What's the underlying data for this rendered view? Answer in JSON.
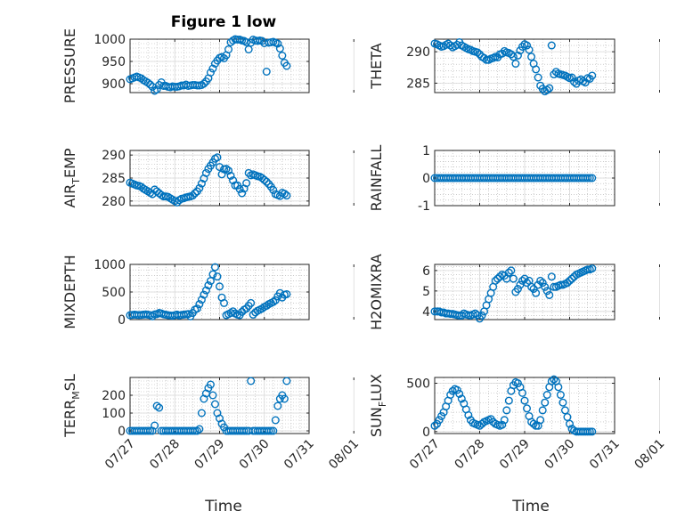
{
  "figure": {
    "title": "Figure 1 low",
    "xlabel": "Time"
  },
  "colors": {
    "marker": "#0072BD",
    "axis": "#262626",
    "grid": "#b0b0b0"
  },
  "time_ticks": [
    "07/27",
    "07/28",
    "07/29",
    "07/30",
    "07/31",
    "08/01"
  ],
  "chart_data": [
    {
      "type": "scatter",
      "id": "pressure",
      "ylabel": "PRESSURE",
      "xlim": [
        0,
        4
      ],
      "ylim": [
        880,
        1000
      ],
      "yticks": [
        900,
        950,
        1000
      ],
      "grid": true,
      "x": [
        0.0,
        0.05,
        0.1,
        0.15,
        0.2,
        0.25,
        0.3,
        0.35,
        0.4,
        0.45,
        0.5,
        0.55,
        0.6,
        0.65,
        0.7,
        0.75,
        0.8,
        0.85,
        0.9,
        0.95,
        1.0,
        1.05,
        1.1,
        1.15,
        1.2,
        1.25,
        1.3,
        1.35,
        1.4,
        1.45,
        1.5,
        1.55,
        1.6,
        1.65,
        1.7,
        1.75,
        1.8,
        1.85,
        1.9,
        1.95,
        2.0,
        2.05,
        2.1,
        2.15,
        2.2,
        2.25,
        2.3,
        2.35,
        2.4,
        2.45,
        2.5,
        2.55,
        2.6,
        2.65,
        2.7,
        2.75,
        2.8,
        2.85,
        2.9,
        2.95,
        3.0,
        3.05,
        3.1,
        3.15,
        3.2,
        3.25,
        3.3,
        3.35,
        3.4,
        3.45,
        3.5
      ],
      "y": [
        910,
        912,
        914,
        916,
        914,
        912,
        908,
        905,
        902,
        898,
        893,
        884,
        887,
        897,
        903,
        895,
        895,
        893,
        892,
        894,
        893,
        893,
        894,
        896,
        896,
        898,
        895,
        896,
        897,
        897,
        896,
        896,
        897,
        900,
        905,
        912,
        925,
        934,
        945,
        952,
        958,
        960,
        957,
        964,
        977,
        993,
        997,
        1000,
        999,
        999,
        997,
        996,
        993,
        977,
        992,
        999,
        997,
        996,
        997,
        996,
        991,
        927,
        992,
        993,
        994,
        992,
        990,
        979,
        963,
        947,
        940
      ]
    },
    {
      "type": "scatter",
      "id": "theta",
      "ylabel": "THETA",
      "xlim": [
        0,
        4
      ],
      "ylim": [
        283.5,
        292
      ],
      "yticks": [
        285,
        290
      ],
      "grid": true,
      "x": [
        0.0,
        0.05,
        0.1,
        0.15,
        0.2,
        0.25,
        0.3,
        0.35,
        0.4,
        0.45,
        0.5,
        0.55,
        0.6,
        0.65,
        0.7,
        0.75,
        0.8,
        0.85,
        0.9,
        0.95,
        1.0,
        1.05,
        1.1,
        1.15,
        1.2,
        1.25,
        1.3,
        1.35,
        1.4,
        1.45,
        1.5,
        1.55,
        1.6,
        1.65,
        1.7,
        1.75,
        1.8,
        1.85,
        1.9,
        1.95,
        2.0,
        2.05,
        2.1,
        2.15,
        2.2,
        2.25,
        2.3,
        2.35,
        2.4,
        2.45,
        2.5,
        2.55,
        2.6,
        2.65,
        2.7,
        2.75,
        2.8,
        2.85,
        2.9,
        2.95,
        3.0,
        3.05,
        3.1,
        3.15,
        3.2,
        3.25,
        3.3,
        3.35,
        3.4,
        3.45,
        3.5
      ],
      "y": [
        291.3,
        291.2,
        291.0,
        290.8,
        290.9,
        291.1,
        291.3,
        291.0,
        290.7,
        290.9,
        291.1,
        291.5,
        291.0,
        290.8,
        290.6,
        290.4,
        290.3,
        290.1,
        290.0,
        289.9,
        289.6,
        289.2,
        289.0,
        288.7,
        288.7,
        288.9,
        289.0,
        289.2,
        289.1,
        289.6,
        289.7,
        290.1,
        289.9,
        289.8,
        289.6,
        289.2,
        288.1,
        289.4,
        290.2,
        290.8,
        291.2,
        291.0,
        290.3,
        289.2,
        288.1,
        287.2,
        285.9,
        284.6,
        284.1,
        283.7,
        283.9,
        284.2,
        291.0,
        286.4,
        286.8,
        286.5,
        286.4,
        286.3,
        286.2,
        286.0,
        285.8,
        285.9,
        285.2,
        284.9,
        285.4,
        285.6,
        285.3,
        285.1,
        285.8,
        285.7,
        286.2
      ]
    },
    {
      "type": "scatter",
      "id": "air_temp",
      "ylabel": "AIR_TEMP",
      "xlim": [
        0,
        4
      ],
      "ylim": [
        279,
        291
      ],
      "yticks": [
        280,
        285,
        290
      ],
      "grid": true,
      "x": [
        0.0,
        0.05,
        0.1,
        0.15,
        0.2,
        0.25,
        0.3,
        0.35,
        0.4,
        0.45,
        0.5,
        0.55,
        0.6,
        0.65,
        0.7,
        0.75,
        0.8,
        0.85,
        0.9,
        0.95,
        1.0,
        1.05,
        1.1,
        1.15,
        1.2,
        1.25,
        1.3,
        1.35,
        1.4,
        1.45,
        1.5,
        1.55,
        1.6,
        1.65,
        1.7,
        1.75,
        1.8,
        1.85,
        1.9,
        1.95,
        2.0,
        2.05,
        2.1,
        2.15,
        2.2,
        2.25,
        2.3,
        2.35,
        2.4,
        2.45,
        2.5,
        2.55,
        2.6,
        2.65,
        2.7,
        2.75,
        2.8,
        2.85,
        2.9,
        2.95,
        3.0,
        3.05,
        3.1,
        3.15,
        3.2,
        3.25,
        3.3,
        3.35,
        3.4,
        3.45,
        3.5
      ],
      "y": [
        284.0,
        283.8,
        283.6,
        283.4,
        283.3,
        283.1,
        282.7,
        282.4,
        282.1,
        281.8,
        281.5,
        282.5,
        282.1,
        281.7,
        281.3,
        281.0,
        281.0,
        280.9,
        280.6,
        280.3,
        280.0,
        279.7,
        280.2,
        280.5,
        280.6,
        280.8,
        280.9,
        281.0,
        281.2,
        281.7,
        282.1,
        282.8,
        283.8,
        284.9,
        286.1,
        287.0,
        287.7,
        288.4,
        289.2,
        289.5,
        287.4,
        285.8,
        286.9,
        287.0,
        286.6,
        285.5,
        284.5,
        283.4,
        283.4,
        282.6,
        281.7,
        282.7,
        283.9,
        286.1,
        285.6,
        285.8,
        285.6,
        285.4,
        285.3,
        285.0,
        284.6,
        284.2,
        283.7,
        283.1,
        282.4,
        281.5,
        281.3,
        281.1,
        281.8,
        281.6,
        281.2
      ]
    },
    {
      "type": "scatter",
      "id": "rainfall",
      "ylabel": "RAINFALL",
      "xlim": [
        0,
        4
      ],
      "ylim": [
        -1,
        1
      ],
      "yticks": [
        -1,
        0,
        1
      ],
      "grid": true,
      "x": [
        0.0,
        0.05,
        0.1,
        0.15,
        0.2,
        0.25,
        0.3,
        0.35,
        0.4,
        0.45,
        0.5,
        0.55,
        0.6,
        0.65,
        0.7,
        0.75,
        0.8,
        0.85,
        0.9,
        0.95,
        1.0,
        1.05,
        1.1,
        1.15,
        1.2,
        1.25,
        1.3,
        1.35,
        1.4,
        1.45,
        1.5,
        1.55,
        1.6,
        1.65,
        1.7,
        1.75,
        1.8,
        1.85,
        1.9,
        1.95,
        2.0,
        2.05,
        2.1,
        2.15,
        2.2,
        2.25,
        2.3,
        2.35,
        2.4,
        2.45,
        2.5,
        2.55,
        2.6,
        2.65,
        2.7,
        2.75,
        2.8,
        2.85,
        2.9,
        2.95,
        3.0,
        3.05,
        3.1,
        3.15,
        3.2,
        3.25,
        3.3,
        3.35,
        3.4,
        3.45,
        3.5
      ],
      "y": [
        0,
        0,
        0,
        0,
        0,
        0,
        0,
        0,
        0,
        0,
        0,
        0,
        0,
        0,
        0,
        0,
        0,
        0,
        0,
        0,
        0,
        0,
        0,
        0,
        0,
        0,
        0,
        0,
        0,
        0,
        0,
        0,
        0,
        0,
        0,
        0,
        0,
        0,
        0,
        0,
        0,
        0,
        0,
        0,
        0,
        0,
        0,
        0,
        0,
        0,
        0,
        0,
        0,
        0,
        0,
        0,
        0,
        0,
        0,
        0,
        0,
        0,
        0,
        0,
        0,
        0,
        0,
        0,
        0,
        0,
        0
      ]
    },
    {
      "type": "scatter",
      "id": "mixdepth",
      "ylabel": "MIXDEPTH",
      "xlim": [
        0,
        4
      ],
      "ylim": [
        0,
        1000
      ],
      "yticks": [
        0,
        500,
        1000
      ],
      "grid": true,
      "x": [
        0.0,
        0.05,
        0.1,
        0.15,
        0.2,
        0.25,
        0.3,
        0.35,
        0.4,
        0.45,
        0.5,
        0.55,
        0.6,
        0.65,
        0.7,
        0.75,
        0.8,
        0.85,
        0.9,
        0.95,
        1.0,
        1.05,
        1.1,
        1.15,
        1.2,
        1.25,
        1.3,
        1.35,
        1.4,
        1.45,
        1.5,
        1.55,
        1.6,
        1.65,
        1.7,
        1.75,
        1.8,
        1.85,
        1.9,
        1.95,
        2.0,
        2.05,
        2.1,
        2.15,
        2.2,
        2.25,
        2.3,
        2.35,
        2.4,
        2.45,
        2.5,
        2.55,
        2.6,
        2.65,
        2.7,
        2.75,
        2.8,
        2.85,
        2.9,
        2.95,
        3.0,
        3.05,
        3.1,
        3.15,
        3.2,
        3.25,
        3.3,
        3.35,
        3.4,
        3.45,
        3.5
      ],
      "y": [
        80,
        85,
        90,
        85,
        82,
        85,
        90,
        95,
        88,
        80,
        60,
        95,
        100,
        120,
        110,
        95,
        88,
        80,
        75,
        70,
        80,
        90,
        75,
        85,
        90,
        95,
        100,
        60,
        120,
        180,
        200,
        280,
        360,
        450,
        530,
        620,
        700,
        820,
        950,
        780,
        600,
        400,
        300,
        80,
        100,
        120,
        150,
        110,
        90,
        80,
        140,
        180,
        200,
        250,
        300,
        90,
        130,
        160,
        180,
        200,
        230,
        250,
        280,
        300,
        320,
        350,
        420,
        480,
        400,
        450,
        460
      ]
    },
    {
      "type": "scatter",
      "id": "h2omixra",
      "ylabel": "H2OMIXRA",
      "xlim": [
        0,
        4
      ],
      "ylim": [
        3.6,
        6.3
      ],
      "yticks": [
        4,
        5,
        6
      ],
      "grid": true,
      "x": [
        0.0,
        0.05,
        0.1,
        0.15,
        0.2,
        0.25,
        0.3,
        0.35,
        0.4,
        0.45,
        0.5,
        0.55,
        0.6,
        0.65,
        0.7,
        0.75,
        0.8,
        0.85,
        0.9,
        0.95,
        1.0,
        1.05,
        1.1,
        1.15,
        1.2,
        1.25,
        1.3,
        1.35,
        1.4,
        1.45,
        1.5,
        1.55,
        1.6,
        1.65,
        1.7,
        1.75,
        1.8,
        1.85,
        1.9,
        1.95,
        2.0,
        2.05,
        2.1,
        2.15,
        2.2,
        2.25,
        2.3,
        2.35,
        2.4,
        2.45,
        2.5,
        2.55,
        2.6,
        2.65,
        2.7,
        2.75,
        2.8,
        2.85,
        2.9,
        2.95,
        3.0,
        3.05,
        3.1,
        3.15,
        3.2,
        3.25,
        3.3,
        3.35,
        3.4,
        3.45,
        3.5
      ],
      "y": [
        4.0,
        4.0,
        4.0,
        3.95,
        3.95,
        3.9,
        3.9,
        3.88,
        3.88,
        3.85,
        3.82,
        3.8,
        3.8,
        3.9,
        3.85,
        3.82,
        3.8,
        3.85,
        3.9,
        3.82,
        3.65,
        3.8,
        4.0,
        4.3,
        4.6,
        4.9,
        5.2,
        5.5,
        5.6,
        5.7,
        5.8,
        5.75,
        5.6,
        5.9,
        6.0,
        5.6,
        4.95,
        5.1,
        5.3,
        5.5,
        5.6,
        5.4,
        5.5,
        5.2,
        5.1,
        4.9,
        5.3,
        5.5,
        5.4,
        5.2,
        5.0,
        4.8,
        5.7,
        5.2,
        5.2,
        5.25,
        5.3,
        5.3,
        5.35,
        5.4,
        5.5,
        5.6,
        5.7,
        5.8,
        5.85,
        5.9,
        5.95,
        6.0,
        6.05,
        6.05,
        6.1
      ]
    },
    {
      "type": "scatter",
      "id": "terr_msl",
      "ylabel": "TERR_MSL",
      "xlim": [
        0,
        4
      ],
      "ylim": [
        -15,
        300
      ],
      "yticks": [
        0,
        100,
        200
      ],
      "grid": true,
      "x": [
        0.0,
        0.05,
        0.1,
        0.15,
        0.2,
        0.25,
        0.3,
        0.35,
        0.4,
        0.45,
        0.5,
        0.55,
        0.6,
        0.65,
        0.7,
        0.75,
        0.8,
        0.85,
        0.9,
        0.95,
        1.0,
        1.05,
        1.1,
        1.15,
        1.2,
        1.25,
        1.3,
        1.35,
        1.4,
        1.45,
        1.5,
        1.55,
        1.6,
        1.65,
        1.7,
        1.75,
        1.8,
        1.85,
        1.9,
        1.95,
        2.0,
        2.05,
        2.1,
        2.15,
        2.2,
        2.25,
        2.3,
        2.35,
        2.4,
        2.45,
        2.5,
        2.55,
        2.6,
        2.65,
        2.7,
        2.75,
        2.8,
        2.85,
        2.9,
        2.95,
        3.0,
        3.05,
        3.1,
        3.15,
        3.2,
        3.25,
        3.3,
        3.35,
        3.4,
        3.45,
        3.5
      ],
      "y": [
        0,
        0,
        0,
        0,
        0,
        0,
        0,
        0,
        0,
        0,
        0,
        30,
        140,
        130,
        0,
        0,
        0,
        0,
        0,
        0,
        0,
        0,
        0,
        0,
        0,
        0,
        0,
        0,
        0,
        0,
        0,
        10,
        100,
        180,
        210,
        240,
        260,
        200,
        150,
        100,
        70,
        40,
        20,
        0,
        0,
        0,
        0,
        0,
        0,
        0,
        0,
        0,
        0,
        0,
        280,
        0,
        0,
        0,
        0,
        0,
        0,
        0,
        0,
        0,
        0,
        60,
        140,
        180,
        200,
        180,
        280
      ]
    },
    {
      "type": "scatter",
      "id": "sun_flux",
      "ylabel": "SUN_FLUX",
      "xlim": [
        0,
        4
      ],
      "ylim": [
        -20,
        560
      ],
      "yticks": [
        0,
        500
      ],
      "grid": true,
      "x": [
        0.0,
        0.05,
        0.1,
        0.15,
        0.2,
        0.25,
        0.3,
        0.35,
        0.4,
        0.45,
        0.5,
        0.55,
        0.6,
        0.65,
        0.7,
        0.75,
        0.8,
        0.85,
        0.9,
        0.95,
        1.0,
        1.05,
        1.1,
        1.15,
        1.2,
        1.25,
        1.3,
        1.35,
        1.4,
        1.45,
        1.5,
        1.55,
        1.6,
        1.65,
        1.7,
        1.75,
        1.8,
        1.85,
        1.9,
        1.95,
        2.0,
        2.05,
        2.1,
        2.15,
        2.2,
        2.25,
        2.3,
        2.35,
        2.4,
        2.45,
        2.5,
        2.55,
        2.6,
        2.65,
        2.7,
        2.75,
        2.8,
        2.85,
        2.9,
        2.95,
        3.0,
        3.05,
        3.1,
        3.15,
        3.2,
        3.25,
        3.3,
        3.35,
        3.4,
        3.45,
        3.5
      ],
      "y": [
        60,
        80,
        120,
        160,
        200,
        260,
        320,
        380,
        420,
        440,
        430,
        390,
        340,
        290,
        230,
        170,
        120,
        90,
        80,
        70,
        60,
        80,
        100,
        110,
        120,
        130,
        100,
        80,
        70,
        60,
        70,
        120,
        220,
        320,
        420,
        480,
        510,
        500,
        460,
        400,
        320,
        240,
        160,
        100,
        80,
        60,
        60,
        120,
        220,
        300,
        380,
        460,
        520,
        540,
        520,
        460,
        380,
        300,
        220,
        150,
        80,
        30,
        10,
        0,
        0,
        0,
        0,
        0,
        0,
        0,
        0
      ]
    }
  ]
}
